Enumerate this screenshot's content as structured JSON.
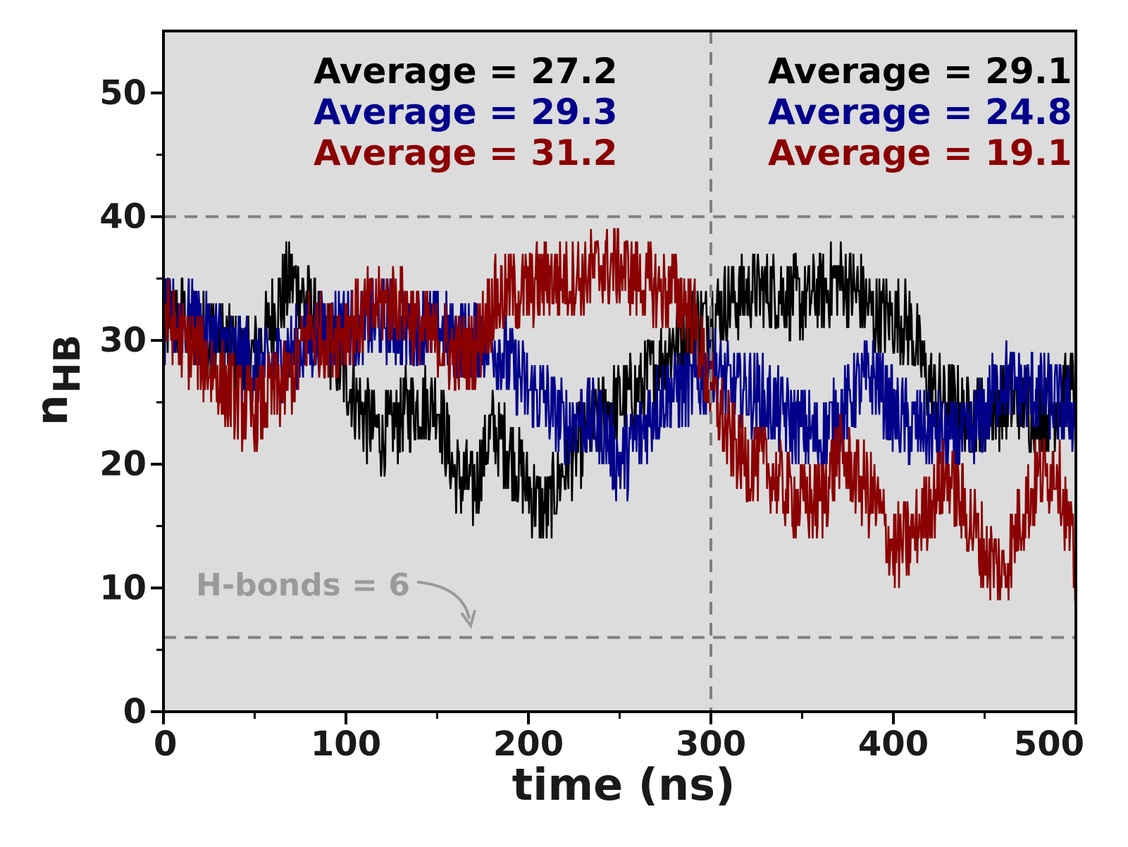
{
  "chart_data": {
    "type": "line",
    "title": "",
    "xlabel": "time (ns)",
    "ylabel_main": "n",
    "ylabel_sub": "HB",
    "xlim": [
      0,
      500
    ],
    "ylim": [
      0,
      55
    ],
    "xticks": [
      0,
      100,
      200,
      300,
      400,
      500
    ],
    "yticks": [
      0,
      10,
      20,
      30,
      40,
      50
    ],
    "grid": false,
    "background_color": "#dcdcdc",
    "reference_lines": {
      "horizontal": [
        6,
        40
      ],
      "vertical": [
        300
      ],
      "color": "#808080"
    },
    "annotation": {
      "text": "H-bonds = 6",
      "target_x": 170,
      "target_y": 6,
      "color": "#9a9a9a"
    },
    "series": [
      {
        "name": "black",
        "color": "#000000",
        "averages": [
          "Average = 27.2",
          "Average = 29.1"
        ],
        "x": [
          0,
          10,
          20,
          30,
          40,
          50,
          60,
          70,
          80,
          90,
          100,
          110,
          120,
          130,
          140,
          150,
          160,
          170,
          180,
          190,
          200,
          210,
          220,
          230,
          240,
          250,
          260,
          270,
          280,
          290,
          300,
          310,
          320,
          330,
          340,
          350,
          360,
          370,
          380,
          390,
          400,
          410,
          420,
          430,
          440,
          450,
          460,
          470,
          480,
          490,
          500
        ],
        "values": [
          31,
          32,
          31,
          30,
          29,
          29,
          32,
          35,
          33,
          30,
          27,
          24,
          22,
          24,
          25,
          25,
          19,
          18,
          23,
          21,
          18,
          16,
          20,
          22,
          24,
          25,
          26,
          28,
          30,
          31,
          32,
          33,
          34,
          34,
          34,
          33,
          34,
          35,
          34,
          32,
          32,
          31,
          26,
          25,
          24,
          24,
          25,
          25,
          24,
          25,
          26
        ],
        "noise": 3.5
      },
      {
        "name": "blue",
        "color": "#00008b",
        "averages": [
          "Average = 29.3",
          "Average = 24.8"
        ],
        "x": [
          0,
          10,
          20,
          30,
          40,
          50,
          60,
          70,
          80,
          90,
          100,
          110,
          120,
          130,
          140,
          150,
          160,
          170,
          180,
          190,
          200,
          210,
          220,
          230,
          240,
          250,
          260,
          270,
          280,
          290,
          300,
          310,
          320,
          330,
          340,
          350,
          360,
          370,
          380,
          390,
          400,
          410,
          420,
          430,
          440,
          450,
          460,
          470,
          480,
          490,
          500
        ],
        "values": [
          31,
          32,
          31,
          30,
          29,
          28,
          28,
          29,
          30,
          31,
          31,
          31,
          32,
          31,
          31,
          31,
          30,
          30,
          30,
          28,
          26,
          25,
          23,
          24,
          23,
          20,
          22,
          25,
          26,
          26,
          28,
          26,
          26,
          25,
          24,
          23,
          22,
          24,
          26,
          27,
          24,
          23,
          23,
          22,
          22,
          24,
          27,
          26,
          26,
          25,
          24
        ],
        "noise": 3.5
      },
      {
        "name": "darkred",
        "color": "#8b0000",
        "averages": [
          "Average = 31.2",
          "Average = 19.1"
        ],
        "x": [
          0,
          10,
          20,
          30,
          40,
          50,
          60,
          70,
          80,
          90,
          100,
          110,
          120,
          130,
          140,
          150,
          160,
          170,
          180,
          190,
          200,
          210,
          220,
          230,
          240,
          250,
          260,
          270,
          280,
          290,
          300,
          310,
          320,
          330,
          340,
          350,
          360,
          370,
          380,
          390,
          400,
          410,
          420,
          430,
          440,
          450,
          460,
          470,
          480,
          490,
          500
        ],
        "values": [
          32,
          30,
          29,
          27,
          25,
          24,
          26,
          27,
          31,
          30,
          31,
          32,
          33,
          33,
          31,
          30,
          29,
          29,
          33,
          34,
          34,
          35,
          35,
          35,
          36,
          36,
          35,
          34,
          34,
          32,
          26,
          22,
          20,
          20,
          18,
          17,
          17,
          21,
          19,
          17,
          13,
          14,
          17,
          19,
          16,
          13,
          11,
          16,
          19,
          20,
          11
        ],
        "noise": 3.5
      }
    ]
  }
}
